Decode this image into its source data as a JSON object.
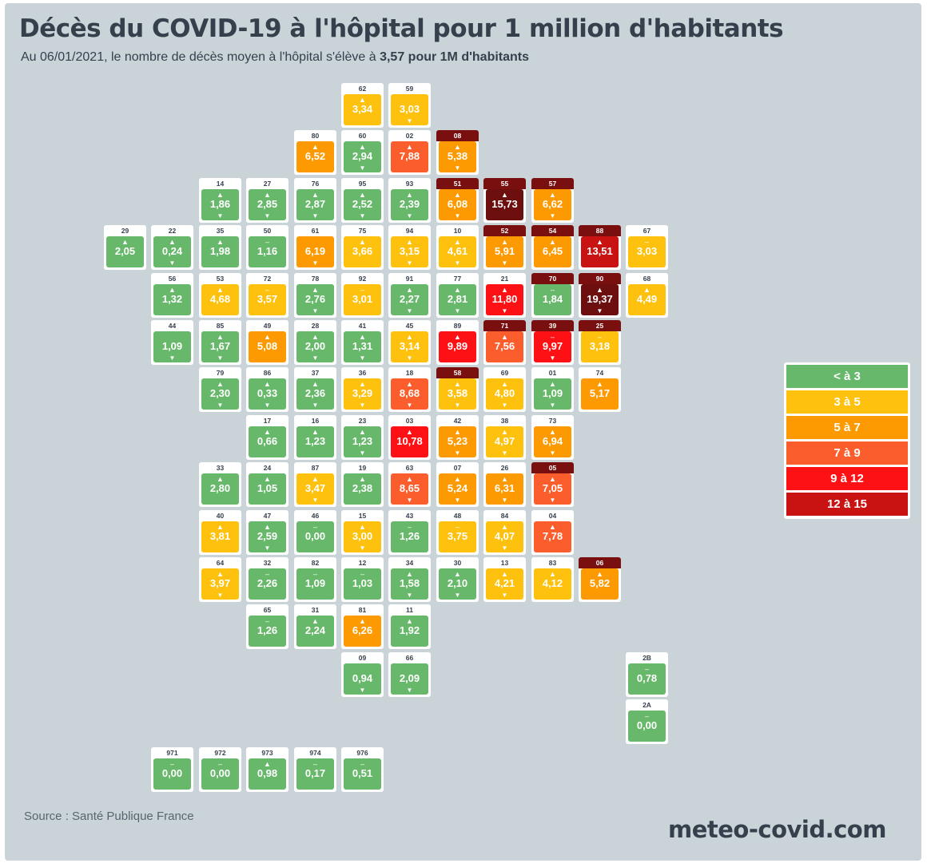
{
  "title": "Décès du COVID-19 à l'hôpital pour 1 million d'habitants",
  "subtitle": {
    "prefix": "Au 06/01/2021, le nombre de décès moyen à l'hôpital s'élève à ",
    "highlight": "3,57 pour 1M d'habitants"
  },
  "colors": {
    "background": "#c9d3d8",
    "green": "#67b86b",
    "yellow": "#fdc10e",
    "orange": "#fd9a01",
    "dark_orange": "#fb5d2c",
    "red": "#fe1114",
    "dark_red": "#c91212",
    "maroon": "#6e0f0f"
  },
  "legend": [
    {
      "label": "< à 3",
      "color": "#67b86b"
    },
    {
      "label": "3 à 5",
      "color": "#fdc10e"
    },
    {
      "label": "5 à 7",
      "color": "#fd9a01"
    },
    {
      "label": "7 à 9",
      "color": "#fb5d2c"
    },
    {
      "label": "9 à 12",
      "color": "#fe1114"
    },
    {
      "label": "12 à 15",
      "color": "#c91212"
    }
  ],
  "departments": [
    {
      "code": "62",
      "value": "3,34",
      "trend": "up",
      "arrow": "none",
      "flag": false,
      "col": 5,
      "row": 0
    },
    {
      "code": "59",
      "value": "3,03",
      "trend": "none",
      "arrow": "down",
      "flag": false,
      "col": 6,
      "row": 0
    },
    {
      "code": "80",
      "value": "6,52",
      "trend": "up",
      "arrow": "none",
      "flag": false,
      "col": 4,
      "row": 1
    },
    {
      "code": "60",
      "value": "2,94",
      "trend": "up",
      "arrow": "down",
      "flag": false,
      "col": 5,
      "row": 1
    },
    {
      "code": "02",
      "value": "7,88",
      "trend": "up",
      "arrow": "none",
      "flag": false,
      "col": 6,
      "row": 1
    },
    {
      "code": "08",
      "value": "5,38",
      "trend": "up",
      "arrow": "down",
      "flag": true,
      "col": 7,
      "row": 1
    },
    {
      "code": "14",
      "value": "1,86",
      "trend": "up",
      "arrow": "down",
      "flag": false,
      "col": 2,
      "row": 2
    },
    {
      "code": "27",
      "value": "2,85",
      "trend": "up",
      "arrow": "down",
      "flag": false,
      "col": 3,
      "row": 2
    },
    {
      "code": "76",
      "value": "2,87",
      "trend": "up",
      "arrow": "down",
      "flag": false,
      "col": 4,
      "row": 2
    },
    {
      "code": "95",
      "value": "2,52",
      "trend": "up",
      "arrow": "down",
      "flag": false,
      "col": 5,
      "row": 2
    },
    {
      "code": "93",
      "value": "2,39",
      "trend": "up",
      "arrow": "down",
      "flag": false,
      "col": 6,
      "row": 2
    },
    {
      "code": "51",
      "value": "6,08",
      "trend": "up",
      "arrow": "down",
      "flag": true,
      "col": 7,
      "row": 2
    },
    {
      "code": "55",
      "value": "15,73",
      "trend": "up",
      "arrow": "none",
      "flag": true,
      "col": 8,
      "row": 2
    },
    {
      "code": "57",
      "value": "6,62",
      "trend": "up",
      "arrow": "down",
      "flag": true,
      "col": 9,
      "row": 2
    },
    {
      "code": "29",
      "value": "2,05",
      "trend": "up",
      "arrow": "none",
      "flag": false,
      "col": 0,
      "row": 3
    },
    {
      "code": "22",
      "value": "0,24",
      "trend": "up",
      "arrow": "down",
      "flag": false,
      "col": 1,
      "row": 3
    },
    {
      "code": "35",
      "value": "1,98",
      "trend": "up",
      "arrow": "none",
      "flag": false,
      "col": 2,
      "row": 3
    },
    {
      "code": "50",
      "value": "1,16",
      "trend": "dash",
      "arrow": "none",
      "flag": false,
      "col": 3,
      "row": 3
    },
    {
      "code": "61",
      "value": "6,19",
      "trend": "none",
      "arrow": "down",
      "flag": false,
      "col": 4,
      "row": 3
    },
    {
      "code": "75",
      "value": "3,66",
      "trend": "up",
      "arrow": "none",
      "flag": false,
      "col": 5,
      "row": 3
    },
    {
      "code": "94",
      "value": "3,15",
      "trend": "up",
      "arrow": "down",
      "flag": false,
      "col": 6,
      "row": 3
    },
    {
      "code": "10",
      "value": "4,61",
      "trend": "up",
      "arrow": "down",
      "flag": false,
      "col": 7,
      "row": 3
    },
    {
      "code": "52",
      "value": "5,91",
      "trend": "up",
      "arrow": "down",
      "flag": true,
      "col": 8,
      "row": 3
    },
    {
      "code": "54",
      "value": "6,45",
      "trend": "up",
      "arrow": "none",
      "flag": true,
      "col": 9,
      "row": 3
    },
    {
      "code": "88",
      "value": "13,51",
      "trend": "up",
      "arrow": "none",
      "flag": true,
      "col": 10,
      "row": 3
    },
    {
      "code": "67",
      "value": "3,03",
      "trend": "dash",
      "arrow": "none",
      "flag": false,
      "col": 11,
      "row": 3
    },
    {
      "code": "56",
      "value": "1,32",
      "trend": "up",
      "arrow": "none",
      "flag": false,
      "col": 1,
      "row": 4
    },
    {
      "code": "53",
      "value": "4,68",
      "trend": "up",
      "arrow": "none",
      "flag": false,
      "col": 2,
      "row": 4
    },
    {
      "code": "72",
      "value": "3,57",
      "trend": "dash",
      "arrow": "none",
      "flag": false,
      "col": 3,
      "row": 4
    },
    {
      "code": "78",
      "value": "2,76",
      "trend": "up",
      "arrow": "down",
      "flag": false,
      "col": 4,
      "row": 4
    },
    {
      "code": "92",
      "value": "3,01",
      "trend": "dash",
      "arrow": "none",
      "flag": false,
      "col": 5,
      "row": 4
    },
    {
      "code": "91",
      "value": "2,27",
      "trend": "up",
      "arrow": "down",
      "flag": false,
      "col": 6,
      "row": 4
    },
    {
      "code": "77",
      "value": "2,81",
      "trend": "up",
      "arrow": "down",
      "flag": false,
      "col": 7,
      "row": 4
    },
    {
      "code": "21",
      "value": "11,80",
      "trend": "up",
      "arrow": "down",
      "flag": false,
      "col": 8,
      "row": 4
    },
    {
      "code": "70",
      "value": "1,84",
      "trend": "dash",
      "arrow": "none",
      "flag": true,
      "col": 9,
      "row": 4
    },
    {
      "code": "90",
      "value": "19,37",
      "trend": "up",
      "arrow": "down",
      "flag": true,
      "col": 10,
      "row": 4
    },
    {
      "code": "68",
      "value": "4,49",
      "trend": "up",
      "arrow": "none",
      "flag": false,
      "col": 11,
      "row": 4
    },
    {
      "code": "44",
      "value": "1,09",
      "trend": "none",
      "arrow": "down",
      "flag": false,
      "col": 1,
      "row": 5
    },
    {
      "code": "85",
      "value": "1,67",
      "trend": "up",
      "arrow": "down",
      "flag": false,
      "col": 2,
      "row": 5
    },
    {
      "code": "49",
      "value": "5,08",
      "trend": "up",
      "arrow": "none",
      "flag": false,
      "col": 3,
      "row": 5
    },
    {
      "code": "28",
      "value": "2,00",
      "trend": "up",
      "arrow": "down",
      "flag": false,
      "col": 4,
      "row": 5
    },
    {
      "code": "41",
      "value": "1,31",
      "trend": "up",
      "arrow": "down",
      "flag": false,
      "col": 5,
      "row": 5
    },
    {
      "code": "45",
      "value": "3,14",
      "trend": "up",
      "arrow": "down",
      "flag": false,
      "col": 6,
      "row": 5
    },
    {
      "code": "89",
      "value": "9,89",
      "trend": "up",
      "arrow": "none",
      "flag": false,
      "col": 7,
      "row": 5
    },
    {
      "code": "71",
      "value": "7,56",
      "trend": "up",
      "arrow": "none",
      "flag": true,
      "col": 8,
      "row": 5
    },
    {
      "code": "39",
      "value": "9,97",
      "trend": "dash",
      "arrow": "down",
      "flag": true,
      "col": 9,
      "row": 5
    },
    {
      "code": "25",
      "value": "3,18",
      "trend": "dash",
      "arrow": "none",
      "flag": true,
      "col": 10,
      "row": 5
    },
    {
      "code": "79",
      "value": "2,30",
      "trend": "up",
      "arrow": "down",
      "flag": false,
      "col": 2,
      "row": 6
    },
    {
      "code": "86",
      "value": "0,33",
      "trend": "up",
      "arrow": "down",
      "flag": false,
      "col": 3,
      "row": 6
    },
    {
      "code": "37",
      "value": "2,36",
      "trend": "up",
      "arrow": "down",
      "flag": false,
      "col": 4,
      "row": 6
    },
    {
      "code": "36",
      "value": "3,29",
      "trend": "up",
      "arrow": "down",
      "flag": false,
      "col": 5,
      "row": 6
    },
    {
      "code": "18",
      "value": "8,68",
      "trend": "up",
      "arrow": "down",
      "flag": false,
      "col": 6,
      "row": 6
    },
    {
      "code": "58",
      "value": "3,58",
      "trend": "up",
      "arrow": "down",
      "flag": true,
      "col": 7,
      "row": 6
    },
    {
      "code": "69",
      "value": "4,80",
      "trend": "up",
      "arrow": "down",
      "flag": false,
      "col": 8,
      "row": 6
    },
    {
      "code": "01",
      "value": "1,09",
      "trend": "up",
      "arrow": "down",
      "flag": false,
      "col": 9,
      "row": 6
    },
    {
      "code": "74",
      "value": "5,17",
      "trend": "up",
      "arrow": "none",
      "flag": false,
      "col": 10,
      "row": 6
    },
    {
      "code": "17",
      "value": "0,66",
      "trend": "up",
      "arrow": "none",
      "flag": false,
      "col": 3,
      "row": 7
    },
    {
      "code": "16",
      "value": "1,23",
      "trend": "up",
      "arrow": "none",
      "flag": false,
      "col": 4,
      "row": 7
    },
    {
      "code": "23",
      "value": "1,23",
      "trend": "up",
      "arrow": "down",
      "flag": false,
      "col": 5,
      "row": 7
    },
    {
      "code": "03",
      "value": "10,78",
      "trend": "up",
      "arrow": "none",
      "flag": false,
      "col": 6,
      "row": 7
    },
    {
      "code": "42",
      "value": "5,23",
      "trend": "up",
      "arrow": "down",
      "flag": false,
      "col": 7,
      "row": 7
    },
    {
      "code": "38",
      "value": "4,97",
      "trend": "up",
      "arrow": "down",
      "flag": false,
      "col": 8,
      "row": 7
    },
    {
      "code": "73",
      "value": "6,94",
      "trend": "up",
      "arrow": "down",
      "flag": false,
      "col": 9,
      "row": 7
    },
    {
      "code": "33",
      "value": "2,80",
      "trend": "up",
      "arrow": "none",
      "flag": false,
      "col": 2,
      "row": 8
    },
    {
      "code": "24",
      "value": "1,05",
      "trend": "up",
      "arrow": "none",
      "flag": false,
      "col": 3,
      "row": 8
    },
    {
      "code": "87",
      "value": "3,47",
      "trend": "up",
      "arrow": "down",
      "flag": false,
      "col": 4,
      "row": 8
    },
    {
      "code": "19",
      "value": "2,38",
      "trend": "up",
      "arrow": "none",
      "flag": false,
      "col": 5,
      "row": 8
    },
    {
      "code": "63",
      "value": "8,65",
      "trend": "up",
      "arrow": "down",
      "flag": false,
      "col": 6,
      "row": 8
    },
    {
      "code": "07",
      "value": "5,24",
      "trend": "up",
      "arrow": "down",
      "flag": false,
      "col": 7,
      "row": 8
    },
    {
      "code": "26",
      "value": "6,31",
      "trend": "up",
      "arrow": "down",
      "flag": false,
      "col": 8,
      "row": 8
    },
    {
      "code": "05",
      "value": "7,05",
      "trend": "up",
      "arrow": "down",
      "flag": true,
      "col": 9,
      "row": 8
    },
    {
      "code": "40",
      "value": "3,81",
      "trend": "up",
      "arrow": "none",
      "flag": false,
      "col": 2,
      "row": 9
    },
    {
      "code": "47",
      "value": "2,59",
      "trend": "up",
      "arrow": "down",
      "flag": false,
      "col": 3,
      "row": 9
    },
    {
      "code": "46",
      "value": "0,00",
      "trend": "dash",
      "arrow": "none",
      "flag": false,
      "col": 4,
      "row": 9
    },
    {
      "code": "15",
      "value": "3,00",
      "trend": "up",
      "arrow": "down",
      "flag": false,
      "col": 5,
      "row": 9
    },
    {
      "code": "43",
      "value": "1,26",
      "trend": "dash",
      "arrow": "none",
      "flag": false,
      "col": 6,
      "row": 9
    },
    {
      "code": "48",
      "value": "3,75",
      "trend": "dash",
      "arrow": "none",
      "flag": false,
      "col": 7,
      "row": 9
    },
    {
      "code": "84",
      "value": "4,07",
      "trend": "up",
      "arrow": "down",
      "flag": false,
      "col": 8,
      "row": 9
    },
    {
      "code": "04",
      "value": "7,78",
      "trend": "up",
      "arrow": "none",
      "flag": false,
      "col": 9,
      "row": 9
    },
    {
      "code": "64",
      "value": "3,97",
      "trend": "up",
      "arrow": "down",
      "flag": false,
      "col": 2,
      "row": 10
    },
    {
      "code": "32",
      "value": "2,26",
      "trend": "dash",
      "arrow": "none",
      "flag": false,
      "col": 3,
      "row": 10
    },
    {
      "code": "82",
      "value": "1,09",
      "trend": "dash",
      "arrow": "none",
      "flag": false,
      "col": 4,
      "row": 10
    },
    {
      "code": "12",
      "value": "1,03",
      "trend": "dash",
      "arrow": "none",
      "flag": false,
      "col": 5,
      "row": 10
    },
    {
      "code": "34",
      "value": "1,58",
      "trend": "up",
      "arrow": "down",
      "flag": false,
      "col": 6,
      "row": 10
    },
    {
      "code": "30",
      "value": "2,10",
      "trend": "up",
      "arrow": "down",
      "flag": false,
      "col": 7,
      "row": 10
    },
    {
      "code": "13",
      "value": "4,21",
      "trend": "up",
      "arrow": "down",
      "flag": false,
      "col": 8,
      "row": 10
    },
    {
      "code": "83",
      "value": "4,12",
      "trend": "up",
      "arrow": "none",
      "flag": false,
      "col": 9,
      "row": 10
    },
    {
      "code": "06",
      "value": "5,82",
      "trend": "up",
      "arrow": "none",
      "flag": true,
      "col": 10,
      "row": 10
    },
    {
      "code": "65",
      "value": "1,26",
      "trend": "dash",
      "arrow": "none",
      "flag": false,
      "col": 3,
      "row": 11
    },
    {
      "code": "31",
      "value": "2,24",
      "trend": "up",
      "arrow": "none",
      "flag": false,
      "col": 4,
      "row": 11
    },
    {
      "code": "81",
      "value": "6,26",
      "trend": "up",
      "arrow": "none",
      "flag": false,
      "col": 5,
      "row": 11
    },
    {
      "code": "11",
      "value": "1,92",
      "trend": "up",
      "arrow": "none",
      "flag": false,
      "col": 6,
      "row": 11
    },
    {
      "code": "09",
      "value": "0,94",
      "trend": "none",
      "arrow": "down",
      "flag": false,
      "col": 5,
      "row": 12
    },
    {
      "code": "66",
      "value": "2,09",
      "trend": "none",
      "arrow": "down",
      "flag": false,
      "col": 6,
      "row": 12
    },
    {
      "code": "2B",
      "value": "0,78",
      "trend": "dash",
      "arrow": "none",
      "flag": false,
      "col": 11,
      "row": 12
    },
    {
      "code": "2A",
      "value": "0,00",
      "trend": "dash",
      "arrow": "none",
      "flag": false,
      "col": 11,
      "row": 13
    },
    {
      "code": "971",
      "value": "0,00",
      "trend": "dash",
      "arrow": "none",
      "flag": false,
      "col": 1,
      "row": 14
    },
    {
      "code": "972",
      "value": "0,00",
      "trend": "dash",
      "arrow": "none",
      "flag": false,
      "col": 2,
      "row": 14
    },
    {
      "code": "973",
      "value": "0,98",
      "trend": "up",
      "arrow": "none",
      "flag": false,
      "col": 3,
      "row": 14
    },
    {
      "code": "974",
      "value": "0,17",
      "trend": "dash",
      "arrow": "none",
      "flag": false,
      "col": 4,
      "row": 14
    },
    {
      "code": "976",
      "value": "0,51",
      "trend": "dash",
      "arrow": "none",
      "flag": false,
      "col": 5,
      "row": 14
    }
  ],
  "source": "Source : Santé Publique France",
  "brand": "meteo-covid.com"
}
